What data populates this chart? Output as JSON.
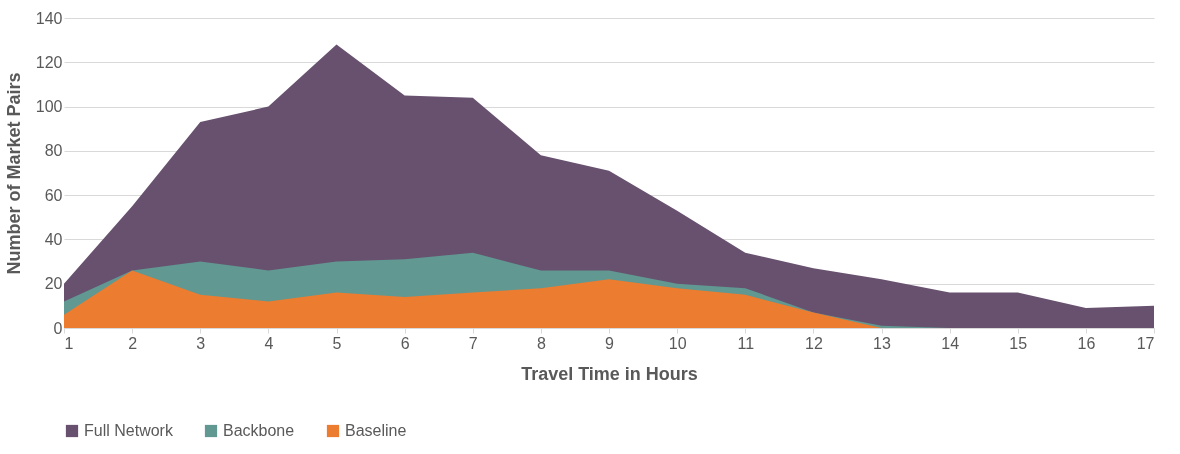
{
  "chart_data": {
    "type": "area",
    "xlabel": "Travel Time in Hours",
    "ylabel": "Number of Market Pairs",
    "x": [
      1,
      2,
      3,
      4,
      5,
      6,
      7,
      8,
      9,
      10,
      11,
      12,
      13,
      14,
      15,
      16,
      17
    ],
    "series": [
      {
        "name": "Full Network",
        "color": "#67516f",
        "values": [
          20,
          55,
          93,
          100,
          128,
          105,
          104,
          78,
          71,
          53,
          34,
          27,
          22,
          16,
          16,
          9,
          10
        ]
      },
      {
        "name": "Backbone",
        "color": "#619892",
        "values": [
          12,
          26,
          30,
          26,
          30,
          31,
          34,
          26,
          26,
          20,
          18,
          7,
          1,
          0,
          0,
          0,
          0
        ]
      },
      {
        "name": "Baseline",
        "color": "#ec7c30",
        "values": [
          6,
          26,
          15,
          12,
          16,
          14,
          16,
          18,
          22,
          18,
          15,
          7,
          0,
          0,
          0,
          0,
          0
        ]
      }
    ],
    "xlim": [
      1,
      17
    ],
    "xticks": [
      1,
      2,
      3,
      4,
      5,
      6,
      7,
      8,
      9,
      10,
      11,
      12,
      13,
      14,
      15,
      16,
      17
    ],
    "ylim": [
      0,
      140
    ],
    "yticks": [
      0,
      20,
      40,
      60,
      80,
      100,
      120,
      140
    ],
    "grid": "y",
    "legend": "bottom"
  }
}
